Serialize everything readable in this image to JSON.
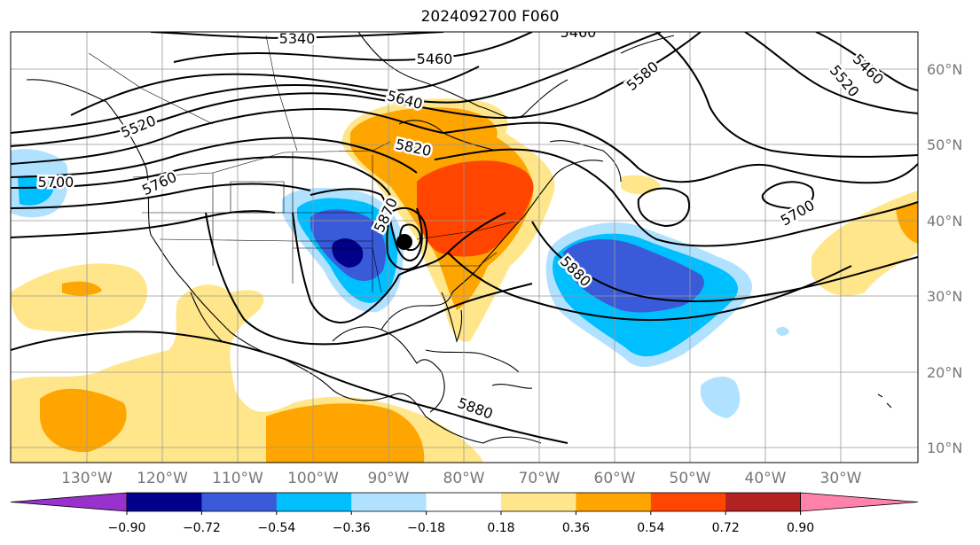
{
  "title": "2024092700 F060",
  "longitude_labels": [
    "130°W",
    "120°W",
    "110°W",
    "100°W",
    "90°W",
    "80°W",
    "70°W",
    "60°W",
    "50°W",
    "40°W",
    "30°W"
  ],
  "latitude_labels": [
    "60°N",
    "50°N",
    "40°N",
    "30°N",
    "20°N",
    "10°N"
  ],
  "contour_labels": [
    "5340",
    "5460",
    "5460",
    "5460",
    "5520",
    "5520",
    "5580",
    "5640",
    "5700",
    "5700",
    "5760",
    "5820",
    "5880",
    "5880",
    "5870"
  ],
  "colorbar": {
    "tick_labels": [
      "−0.90",
      "−0.72",
      "−0.54",
      "−0.36",
      "−0.18",
      "0.18",
      "0.36",
      "0.54",
      "0.72",
      "0.90"
    ],
    "colors": [
      "#9932cc",
      "#00008b",
      "#3a5bd9",
      "#00bfff",
      "#b0e2ff",
      "#ffffff",
      "#ffe68a",
      "#ffa500",
      "#ff4500",
      "#b22222",
      "#ff82ab"
    ]
  },
  "marker": {
    "symbol": "storm-center-dot",
    "color": "#000000"
  }
}
